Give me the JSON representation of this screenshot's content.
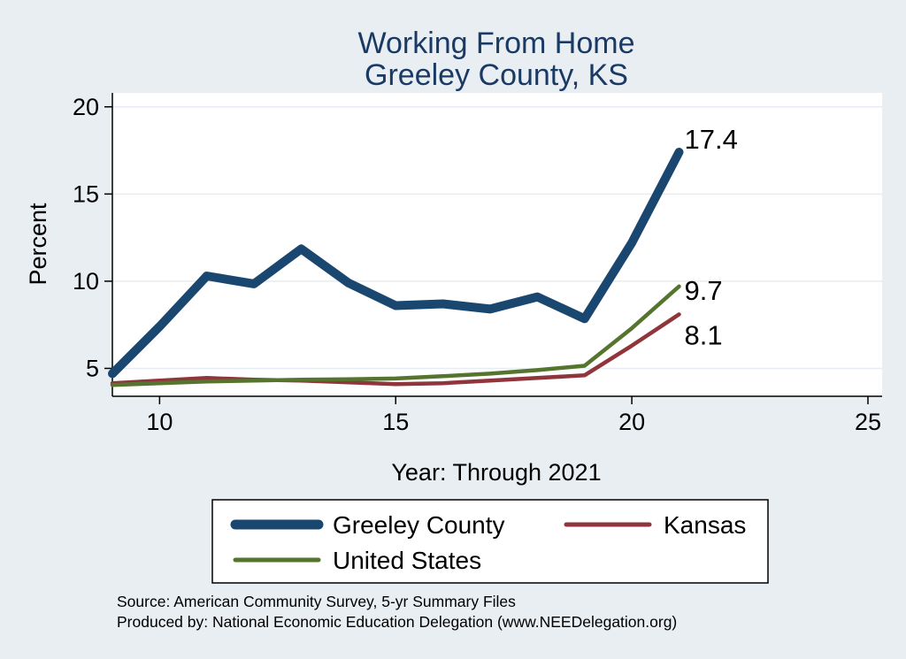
{
  "chart_data": {
    "type": "line",
    "title": [
      "Working From Home",
      "Greeley County, KS"
    ],
    "xlabel": "Year: Through 2021",
    "ylabel": "Percent",
    "xlim": [
      9,
      25.3
    ],
    "ylim": [
      3.4,
      20.8
    ],
    "xticks": [
      10,
      15,
      20,
      25
    ],
    "yticks": [
      5,
      10,
      15,
      20
    ],
    "grid": true,
    "series": [
      {
        "name": "Greeley County",
        "color": "#1a476f",
        "x": [
          9,
          10,
          11,
          12,
          13,
          14,
          15,
          16,
          17,
          18,
          19,
          20,
          21
        ],
        "values": [
          4.7,
          7.4,
          10.3,
          9.85,
          11.85,
          9.9,
          8.6,
          8.7,
          8.4,
          9.1,
          7.85,
          12.2,
          17.4
        ],
        "end_label": "17.4"
      },
      {
        "name": "Kansas",
        "color": "#90353b",
        "x": [
          9,
          10,
          11,
          12,
          13,
          14,
          15,
          16,
          17,
          18,
          19,
          20,
          21
        ],
        "values": [
          4.15,
          4.3,
          4.45,
          4.35,
          4.3,
          4.2,
          4.1,
          4.15,
          4.3,
          4.45,
          4.6,
          6.3,
          8.1
        ],
        "end_label": "8.1"
      },
      {
        "name": "United States",
        "color": "#55752f",
        "x": [
          9,
          10,
          11,
          12,
          13,
          14,
          15,
          16,
          17,
          18,
          19,
          20,
          21
        ],
        "values": [
          4.05,
          4.15,
          4.25,
          4.3,
          4.35,
          4.38,
          4.42,
          4.55,
          4.7,
          4.9,
          5.15,
          7.3,
          9.7
        ],
        "end_label": "9.7"
      }
    ],
    "legend": [
      "Greeley County",
      "Kansas",
      "United States"
    ]
  },
  "notes": [
    "Source: American Community Survey, 5-yr Summary Files",
    "Produced by: National Economic Education Delegation (www.NEEDelegation.org)"
  ],
  "colors": {
    "background": "#e9eef3",
    "plot_background": "#ffffff",
    "title": "#1a3a66",
    "grid": "#e6ecf1"
  }
}
